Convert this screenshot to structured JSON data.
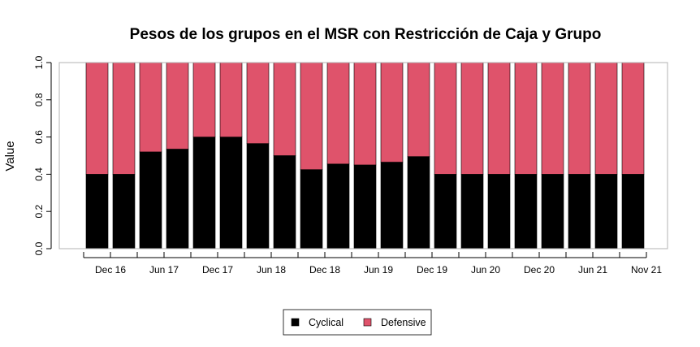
{
  "chart_data": {
    "type": "bar",
    "stacked": true,
    "title": "Pesos de los grupos en el MSR con Restricción de Caja y Grupo",
    "xlabel": "",
    "ylabel": "Value",
    "ylim": [
      0,
      1
    ],
    "yticks": [
      "0.0",
      "0.2",
      "0.4",
      "0.6",
      "0.8",
      "1.0"
    ],
    "grid": false,
    "legend_position": "bottom",
    "x_tick_labels": [
      {
        "index": 0.5,
        "label": "Dec 16"
      },
      {
        "index": 2.5,
        "label": "Jun 17"
      },
      {
        "index": 4.5,
        "label": "Dec 17"
      },
      {
        "index": 6.5,
        "label": "Jun 18"
      },
      {
        "index": 8.5,
        "label": "Dec 18"
      },
      {
        "index": 10.5,
        "label": "Jun 19"
      },
      {
        "index": 12.5,
        "label": "Dec 19"
      },
      {
        "index": 14.5,
        "label": "Jun 20"
      },
      {
        "index": 16.5,
        "label": "Dec 20"
      },
      {
        "index": 18.5,
        "label": "Jun 21"
      },
      {
        "index": 20.5,
        "label": "Nov 21"
      }
    ],
    "series": [
      {
        "name": "Cyclical",
        "color": "#000000",
        "values": [
          0.4,
          0.4,
          0.52,
          0.535,
          0.6,
          0.6,
          0.565,
          0.5,
          0.425,
          0.455,
          0.45,
          0.465,
          0.495,
          0.4,
          0.4,
          0.4,
          0.4,
          0.4,
          0.4,
          0.4,
          0.4
        ]
      },
      {
        "name": "Defensive",
        "color": "#DF536B",
        "values": [
          0.6,
          0.6,
          0.48,
          0.465,
          0.4,
          0.4,
          0.435,
          0.5,
          0.575,
          0.545,
          0.55,
          0.535,
          0.505,
          0.6,
          0.6,
          0.6,
          0.6,
          0.6,
          0.6,
          0.6,
          0.6
        ]
      }
    ]
  }
}
